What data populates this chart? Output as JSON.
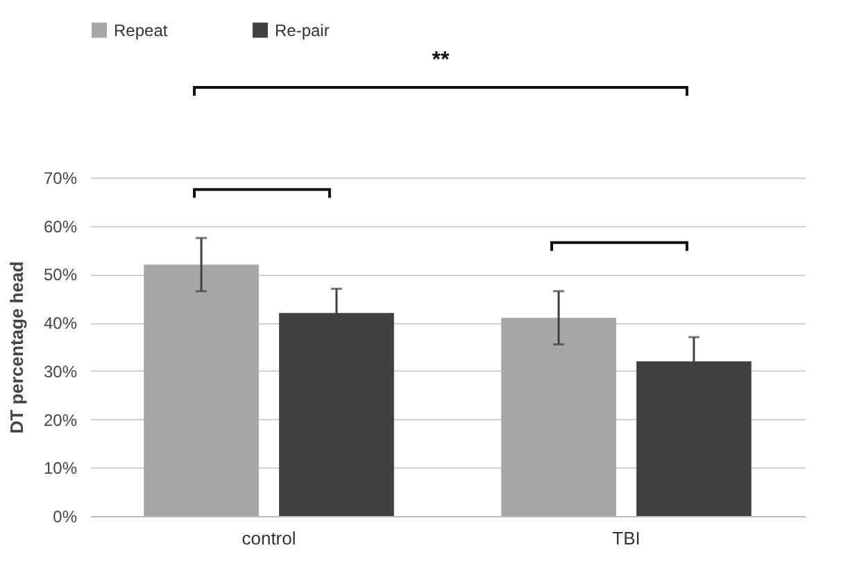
{
  "chart_data": {
    "type": "bar",
    "ylabel": "DT percentage head",
    "categories": [
      "control",
      "TBI"
    ],
    "series": [
      {
        "name": "Repeat",
        "color": "#a6a6a6",
        "values": [
          52,
          41
        ],
        "errors": [
          5.5,
          5.5
        ]
      },
      {
        "name": "Re-pair",
        "color": "#404040",
        "values": [
          42,
          32
        ],
        "errors": [
          5,
          5
        ]
      }
    ],
    "ylim": [
      0,
      70
    ],
    "yticks": [
      {
        "value": 0,
        "label": "0%"
      },
      {
        "value": 10,
        "label": "10%"
      },
      {
        "value": 20,
        "label": "20%"
      },
      {
        "value": 30,
        "label": "30%"
      },
      {
        "value": 40,
        "label": "40%"
      },
      {
        "value": 50,
        "label": "50%"
      },
      {
        "value": 60,
        "label": "60%"
      },
      {
        "value": 70,
        "label": "70%"
      }
    ],
    "grid": "y",
    "legend": "top",
    "annotations": [
      "**"
    ]
  }
}
